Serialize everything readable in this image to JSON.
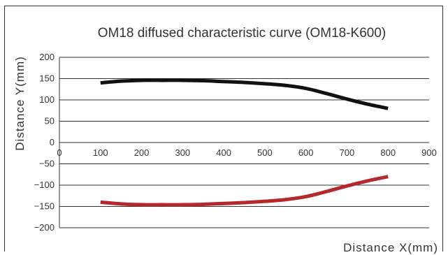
{
  "chart_data": {
    "type": "line",
    "title": "OM18 diffused characteristic curve (OM18-K600)",
    "xlabel": "Distance X(mm)",
    "ylabel": "Distance Y(mm)",
    "xlim": [
      0,
      900
    ],
    "ylim": [
      -200,
      200
    ],
    "x_ticks": [
      "0",
      "100",
      "200",
      "300",
      "400",
      "500",
      "600",
      "700",
      "800",
      "900"
    ],
    "y_ticks": [
      "200",
      "150",
      "100",
      "50",
      "0",
      "−50",
      "−100",
      "−150",
      "−200"
    ],
    "grid": "horizontal",
    "series": [
      {
        "color": "#111111",
        "x": [
          100,
          150,
          200,
          250,
          300,
          350,
          400,
          450,
          500,
          550,
          600,
          650,
          700,
          750,
          800
        ],
        "y": [
          140,
          144,
          146,
          146,
          146,
          145,
          143,
          141,
          138,
          134,
          127,
          115,
          102,
          90,
          80
        ]
      },
      {
        "color": "#b5282e",
        "x": [
          100,
          150,
          200,
          250,
          300,
          350,
          400,
          450,
          500,
          550,
          600,
          650,
          700,
          750,
          800
        ],
        "y": [
          -140,
          -144,
          -146,
          -146,
          -146,
          -145,
          -143,
          -141,
          -138,
          -134,
          -127,
          -115,
          -102,
          -90,
          -80
        ]
      }
    ]
  }
}
